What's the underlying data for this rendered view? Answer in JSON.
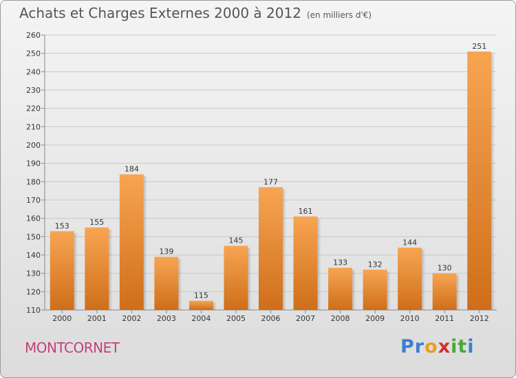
{
  "title": "Achats et Charges Externes 2000 à 2012",
  "subtitle": "(en milliers d'€)",
  "commune": "MONTCORNET",
  "logo": {
    "letters": [
      "P",
      "r",
      "o",
      "x",
      "i",
      "t",
      "i"
    ],
    "colors": [
      "#3a7fd0",
      "#3a7fd0",
      "#e8a020",
      "#d03030",
      "#4aa838",
      "#4aa838",
      "#3a7fd0"
    ]
  },
  "colors": {
    "bar_top": "#f7a552",
    "bar_bottom": "#cf6e1a",
    "grid": "#c8c8c8",
    "axis_text": "#333333",
    "label_text": "#333333"
  },
  "chart_data": {
    "type": "bar",
    "categories": [
      "2000",
      "2001",
      "2002",
      "2003",
      "2004",
      "2005",
      "2006",
      "2007",
      "2008",
      "2009",
      "2010",
      "2011",
      "2012"
    ],
    "values": [
      153,
      155,
      184,
      139,
      115,
      145,
      177,
      161,
      133,
      132,
      144,
      130,
      251
    ],
    "ylim": [
      110,
      260
    ],
    "yticks": [
      110,
      120,
      130,
      140,
      150,
      160,
      170,
      180,
      190,
      200,
      210,
      220,
      230,
      240,
      250,
      260
    ],
    "grid": true,
    "data_labels": true
  }
}
